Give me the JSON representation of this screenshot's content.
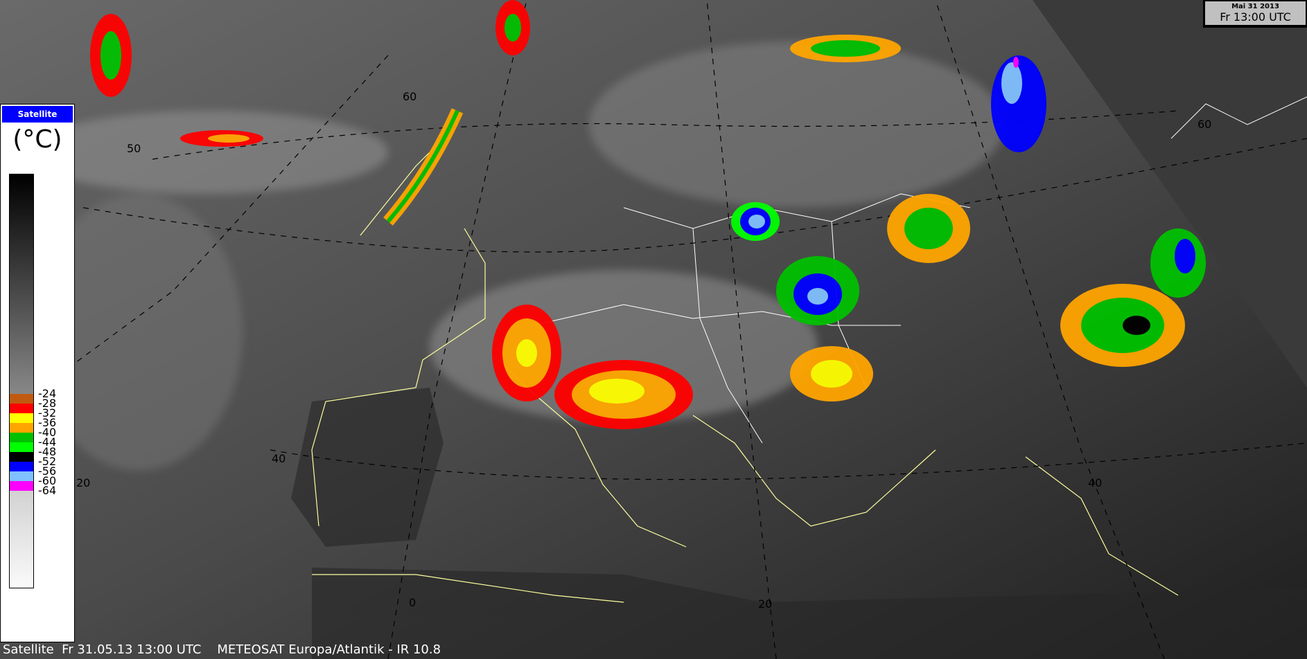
{
  "legend": {
    "title": "Satellite",
    "unit": "(°C)",
    "steps": [
      {
        "label": "-24",
        "color": "#c05a10"
      },
      {
        "label": "-28",
        "color": "#ff0000"
      },
      {
        "label": "-32",
        "color": "#ffff00"
      },
      {
        "label": "-36",
        "color": "#ffa500"
      },
      {
        "label": "-40",
        "color": "#00c000"
      },
      {
        "label": "-44",
        "color": "#00ff00"
      },
      {
        "label": "-48",
        "color": "#000000"
      },
      {
        "label": "-52",
        "color": "#0000ff"
      },
      {
        "label": "-56",
        "color": "#80c0ff"
      },
      {
        "label": "-60",
        "color": "#ff00ff"
      },
      {
        "label": "-64",
        "color": "#d2d2d2"
      }
    ]
  },
  "timebox": {
    "date": "Mai 31 2013",
    "time": "Fr 13:00 UTC"
  },
  "caption": "Satellite  Fr 31.05.13 13:00 UTC    METEOSAT Europa/Atlantik - IR 10.8",
  "grid_labels": {
    "lat60": "60",
    "lat50": "50",
    "lat40": "40",
    "lon20w": "20",
    "lon0": "0",
    "lon20e": "20",
    "lat40e": "40",
    "lat60e": "60"
  }
}
